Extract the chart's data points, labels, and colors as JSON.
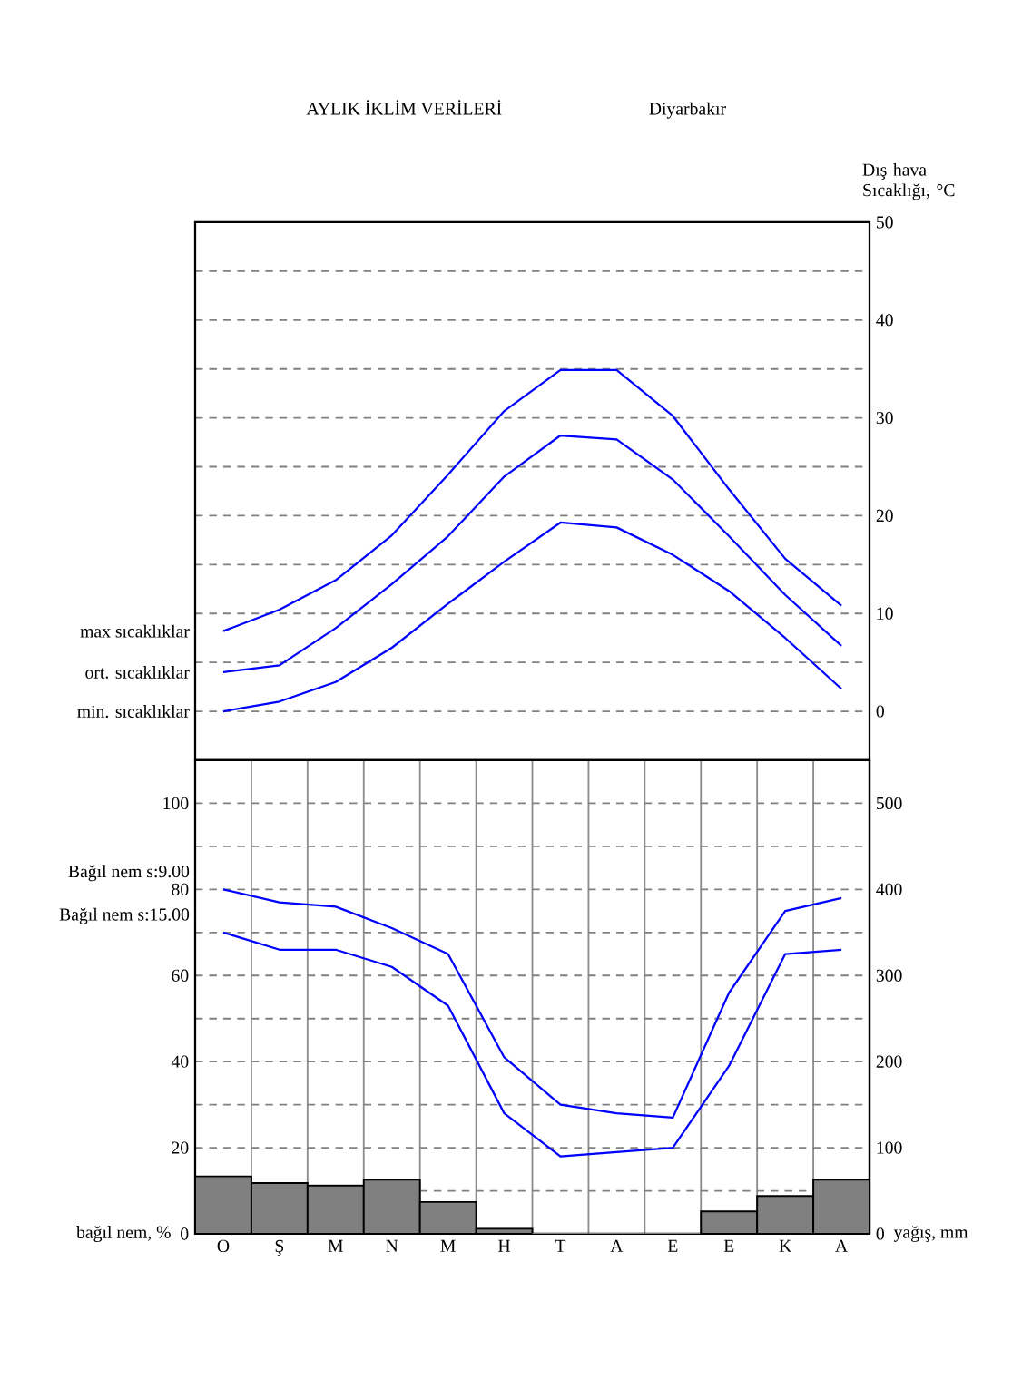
{
  "chart_data": [
    {
      "type": "line",
      "title": "AYLIK İKLİM VERİLERİ",
      "subtitle": "Diyarbakır",
      "ylabel": "Dış hava Sıcaklığı, °C",
      "categories": [
        null,
        null,
        null,
        null,
        null,
        null,
        null,
        null,
        null,
        null,
        null,
        null
      ],
      "ylim": [
        -5,
        50
      ],
      "yticks": [
        0,
        10,
        20,
        30,
        40,
        50
      ],
      "grid": true,
      "tick_labels": "y",
      "series": [
        {
          "name": "max sıcaklıklar",
          "color": "#0000ff",
          "values": [
            8.2,
            10.4,
            13.4,
            18.0,
            24.2,
            30.7,
            34.9,
            34.9,
            30.2,
            22.7,
            15.6,
            10.8
          ]
        },
        {
          "name": "ort. sıcaklıklar",
          "color": "#0000ff",
          "values": [
            4.0,
            4.7,
            8.5,
            13.0,
            17.9,
            24.0,
            28.2,
            27.8,
            23.7,
            17.9,
            11.9,
            6.7
          ]
        },
        {
          "name": "min. sıcaklıklar",
          "color": "#0000ff",
          "values": [
            0.0,
            1.0,
            3.0,
            6.5,
            11.0,
            15.3,
            19.3,
            18.8,
            16.0,
            12.3,
            7.5,
            2.3
          ]
        }
      ]
    },
    {
      "type": "line",
      "ylabel": "bağıl nem, %",
      "y2label": "yağış, mm",
      "categories": [
        "O",
        "Ş",
        "M",
        "N",
        "M",
        "H",
        "T",
        "A",
        "E",
        "E",
        "K",
        "A"
      ],
      "ylim": [
        0,
        110
      ],
      "yticks": [
        0,
        20,
        40,
        60,
        80,
        100
      ],
      "y2lim": [
        0,
        550
      ],
      "y2ticks": [
        0,
        100,
        200,
        300,
        400,
        500
      ],
      "grid": true,
      "series": [
        {
          "type": "bar",
          "axis": "y2",
          "color": "#808080",
          "values": [
            67,
            59,
            56,
            63,
            37,
            6,
            0,
            0,
            0,
            26,
            44,
            63
          ]
        },
        {
          "name": "Bağıl nem s:9.00",
          "color": "#0000ff",
          "values": [
            80,
            77,
            76,
            71,
            65,
            41,
            30,
            28,
            27,
            56,
            75,
            78
          ]
        },
        {
          "name": "Bağıl nem s:15.00",
          "color": "#0000ff",
          "values": [
            70,
            66,
            66,
            62,
            53,
            28,
            18,
            19,
            20,
            39,
            65,
            66
          ]
        }
      ]
    }
  ]
}
